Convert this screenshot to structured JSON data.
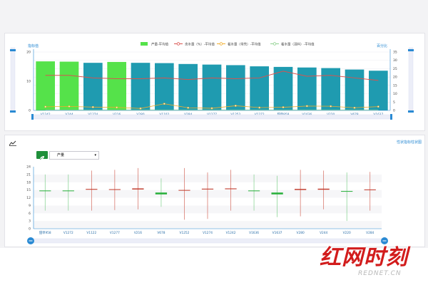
{
  "top_chart": {
    "left_axis_title": "指标值",
    "right_axis_title": "百分比",
    "legend": {
      "bar": "产量-平均值",
      "line1": "含水量（%）-平均值",
      "line2": "着水量（带壳）-平均值",
      "line3": "着水量（湿料）-平均值"
    },
    "colors": {
      "bar_green": "#55e24a",
      "bar_teal": "#1f9bb0",
      "line1": "#d9534f",
      "line2": "#f0ad2b",
      "line3": "#8fd18f",
      "axis_accent": "#2a8ad3"
    }
  },
  "bottom_panel": {
    "chart_icon": "line-chart-icon",
    "link_text": "性状指标柱状图",
    "select_icon": "leaf-icon",
    "select_value": "产量",
    "select_caret": "▾"
  },
  "watermark": {
    "main": "红网时刻",
    "sub": "REDNET.CN"
  },
  "chart_data": [
    {
      "type": "bar",
      "categories": [
        "V1242",
        "V244",
        "V1274",
        "V216",
        "V280",
        "V1102",
        "V284",
        "V1277",
        "V1252",
        "V1272",
        "甜单958",
        "V1636",
        "V220",
        "V678",
        "V1637"
      ],
      "series": [
        {
          "name": "产量-平均值",
          "values": [
            16.8,
            16.7,
            16.3,
            16.6,
            16.3,
            16.2,
            15.9,
            15.7,
            15.5,
            15.1,
            14.9,
            14.7,
            14.5,
            14.0,
            13.6
          ]
        },
        {
          "name": "含水量（%）-平均值",
          "values": [
            21,
            21,
            19.5,
            19,
            19,
            19.5,
            18.5,
            19.5,
            19,
            19.5,
            23.5,
            20.5,
            21,
            19.5,
            18
          ]
        },
        {
          "name": "着水量（带壳）-平均值",
          "values": [
            2.2,
            2.4,
            2.0,
            1.8,
            1.2,
            4.0,
            1.6,
            1.3,
            2.8,
            1.7,
            1.9,
            2.6,
            2.5,
            1.6,
            2.3
          ]
        },
        {
          "name": "着水量（湿料）-平均值",
          "values": [
            0.3,
            0.3,
            0.3,
            0.3,
            0.3,
            0.3,
            0.3,
            0.3,
            0.3,
            0.3,
            0.3,
            0.3,
            0.3,
            0.3,
            0.3
          ]
        }
      ],
      "left_axis": {
        "ylim": [
          0,
          20
        ],
        "ticks": [
          "0",
          "10",
          "20"
        ]
      },
      "right_axis": {
        "ylim": [
          0,
          35
        ],
        "ticks": [
          "0",
          "5",
          "10",
          "15",
          "20",
          "25",
          "30",
          "35"
        ]
      },
      "green_bar_indices": [
        0,
        1,
        3
      ]
    },
    {
      "type": "candlestick",
      "categories": [
        "甜单958",
        "V1272",
        "V1122",
        "V1277",
        "V216",
        "V678",
        "V1252",
        "V1274",
        "V1242",
        "V1636",
        "V1637",
        "V280",
        "V244",
        "V220",
        "V284"
      ],
      "ylim": [
        0,
        24
      ],
      "ticks": [
        "0",
        "3",
        "6",
        "9",
        "12",
        "15",
        "18",
        "21",
        "24"
      ],
      "items": [
        {
          "open": 14.6,
          "close": 14.8,
          "low": 7.0,
          "high": 21.0,
          "up": false
        },
        {
          "open": 14.6,
          "close": 14.8,
          "low": 7.0,
          "high": 21.0,
          "up": false
        },
        {
          "open": 15.1,
          "close": 15.4,
          "low": 7.0,
          "high": 22.5,
          "up": true
        },
        {
          "open": 15.1,
          "close": 15.3,
          "low": 7.2,
          "high": 22.8,
          "up": true
        },
        {
          "open": 15.2,
          "close": 15.6,
          "low": 7.5,
          "high": 23.5,
          "up": true
        },
        {
          "open": 13.3,
          "close": 14.0,
          "low": 8.5,
          "high": 19.5,
          "up": false
        },
        {
          "open": 14.8,
          "close": 15.0,
          "low": 3.5,
          "high": 23.5,
          "up": true
        },
        {
          "open": 15.2,
          "close": 15.5,
          "low": 3.8,
          "high": 21.8,
          "up": true
        },
        {
          "open": 15.3,
          "close": 15.6,
          "low": 7.0,
          "high": 22.8,
          "up": true
        },
        {
          "open": 14.6,
          "close": 14.8,
          "low": 7.0,
          "high": 21.0,
          "up": false
        },
        {
          "open": 13.3,
          "close": 14.0,
          "low": 4.5,
          "high": 20.5,
          "up": false
        },
        {
          "open": 15.0,
          "close": 15.4,
          "low": 4.8,
          "high": 22.8,
          "up": true
        },
        {
          "open": 15.1,
          "close": 15.5,
          "low": 7.5,
          "high": 22.5,
          "up": true
        },
        {
          "open": 14.4,
          "close": 14.6,
          "low": 3.0,
          "high": 21.8,
          "up": false
        },
        {
          "open": 15.0,
          "close": 15.2,
          "low": 7.0,
          "high": 22.0,
          "up": true
        }
      ]
    }
  ]
}
